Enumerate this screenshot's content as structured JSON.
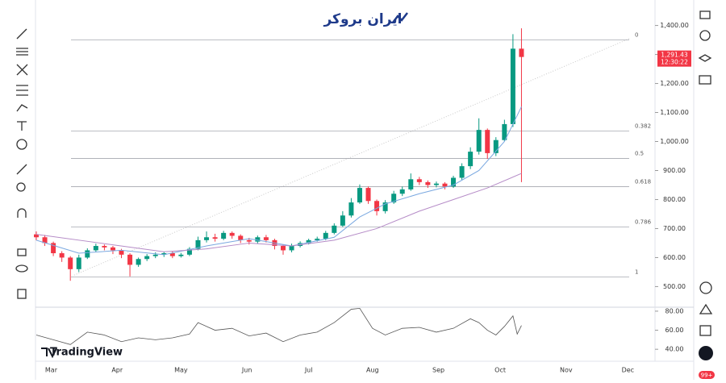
{
  "header": {
    "logo": "ایران بروکر",
    "watermark": "TradingView",
    "badge": "99+"
  },
  "chart_data": [
    {
      "type": "candlestick",
      "x": [
        0,
        4,
        8,
        12,
        16,
        20,
        24,
        28,
        32,
        36,
        40,
        44,
        48,
        52,
        56,
        60,
        64,
        68,
        72,
        76,
        80,
        84,
        88,
        92,
        96,
        100,
        104,
        108,
        112,
        116,
        120,
        124,
        128,
        132,
        136,
        140,
        144,
        148,
        152,
        156,
        160,
        164,
        168,
        172,
        176,
        180,
        184,
        188,
        192,
        196,
        200,
        204,
        208,
        212,
        216,
        220,
        224,
        228
      ],
      "open": [
        680,
        670,
        650,
        615,
        600,
        560,
        600,
        625,
        640,
        635,
        625,
        610,
        575,
        595,
        605,
        610,
        615,
        605,
        610,
        630,
        660,
        670,
        665,
        685,
        675,
        660,
        655,
        670,
        660,
        640,
        625,
        640,
        650,
        660,
        665,
        685,
        710,
        745,
        790,
        840,
        795,
        760,
        790,
        820,
        835,
        870,
        860,
        850,
        855,
        845,
        875,
        915,
        965,
        1040,
        960,
        1005,
        1060,
        1320
      ],
      "high": [
        690,
        678,
        655,
        622,
        605,
        610,
        632,
        648,
        645,
        640,
        630,
        615,
        600,
        612,
        618,
        620,
        622,
        616,
        636,
        672,
        690,
        682,
        692,
        690,
        680,
        668,
        676,
        678,
        665,
        645,
        648,
        656,
        665,
        672,
        692,
        718,
        760,
        805,
        852,
        845,
        800,
        798,
        830,
        845,
        890,
        878,
        866,
        862,
        860,
        882,
        925,
        980,
        1080,
        1045,
        1015,
        1075,
        1370,
        1390
      ],
      "low": [
        660,
        640,
        605,
        585,
        520,
        550,
        595,
        618,
        625,
        612,
        598,
        535,
        568,
        588,
        598,
        602,
        598,
        600,
        605,
        625,
        652,
        655,
        660,
        665,
        650,
        645,
        648,
        652,
        628,
        610,
        618,
        635,
        645,
        655,
        660,
        680,
        705,
        738,
        785,
        785,
        745,
        752,
        785,
        812,
        830,
        850,
        840,
        842,
        835,
        840,
        868,
        905,
        955,
        940,
        950,
        1000,
        1050,
        860
      ],
      "close": [
        670,
        650,
        615,
        600,
        560,
        600,
        625,
        640,
        635,
        625,
        610,
        575,
        595,
        605,
        610,
        615,
        605,
        610,
        630,
        660,
        670,
        665,
        685,
        675,
        660,
        655,
        670,
        660,
        640,
        625,
        640,
        650,
        660,
        665,
        685,
        710,
        745,
        790,
        840,
        795,
        760,
        790,
        820,
        835,
        870,
        860,
        850,
        855,
        845,
        875,
        915,
        965,
        1040,
        960,
        1005,
        1060,
        1320,
        1291.43
      ],
      "up_color": "#089981",
      "down_color": "#f23645",
      "last_price_label": "1,291.43",
      "countdown": "12:30:22",
      "moving_averages": [
        {
          "color": "#7aa8e0",
          "x": [
            0,
            20,
            40,
            60,
            80,
            100,
            120,
            140,
            152,
            164,
            180,
            196,
            208,
            220,
            228
          ],
          "values": [
            660,
            615,
            625,
            610,
            640,
            665,
            640,
            670,
            740,
            785,
            820,
            850,
            900,
            1000,
            1120
          ]
        },
        {
          "color": "#b58bc7",
          "x": [
            0,
            30,
            60,
            80,
            100,
            120,
            140,
            160,
            180,
            196,
            212,
            228
          ],
          "values": [
            680,
            650,
            620,
            630,
            650,
            640,
            660,
            700,
            760,
            800,
            840,
            890
          ]
        }
      ],
      "fib_levels": [
        {
          "label": "0",
          "price": 1350
        },
        {
          "label": "0.382",
          "price": 1036
        },
        {
          "label": "0.5",
          "price": 942
        },
        {
          "label": "0.618",
          "price": 844
        },
        {
          "label": "0.786",
          "price": 706
        },
        {
          "label": "1",
          "price": 533
        }
      ],
      "xlim": [
        0,
        290
      ],
      "xticks": [
        {
          "value": 7,
          "label": "Mar"
        },
        {
          "value": 38,
          "label": "Apr"
        },
        {
          "value": 68,
          "label": "May"
        },
        {
          "value": 99,
          "label": "Jun"
        },
        {
          "value": 128,
          "label": "Jul"
        },
        {
          "value": 158,
          "label": "Aug"
        },
        {
          "value": 189,
          "label": "Sep"
        },
        {
          "value": 218,
          "label": "Oct"
        },
        {
          "value": 249,
          "label": "Nov"
        },
        {
          "value": 278,
          "label": "Dec"
        }
      ],
      "ylim": [
        440,
        1460
      ],
      "yticks": [
        {
          "value": 500,
          "label": "500.00"
        },
        {
          "value": 600,
          "label": "600.00"
        },
        {
          "value": 700,
          "label": "700.00"
        },
        {
          "value": 800,
          "label": "800.00"
        },
        {
          "value": 900,
          "label": "900.00"
        },
        {
          "value": 1000,
          "label": "1,000.00"
        },
        {
          "value": 1100,
          "label": "1,100.00"
        },
        {
          "value": 1200,
          "label": "1,200.00"
        },
        {
          "value": 1300,
          "label": "1,300.00"
        },
        {
          "value": 1400,
          "label": "1,400.00"
        }
      ]
    },
    {
      "type": "line",
      "color": "#555555",
      "x": [
        0,
        8,
        16,
        24,
        32,
        40,
        48,
        56,
        64,
        72,
        76,
        84,
        92,
        100,
        108,
        116,
        124,
        132,
        140,
        148,
        152,
        158,
        164,
        172,
        180,
        188,
        196,
        204,
        208,
        212,
        216,
        220,
        224,
        226,
        228
      ],
      "values": [
        55,
        50,
        45,
        58,
        55,
        48,
        52,
        50,
        52,
        56,
        68,
        60,
        62,
        54,
        57,
        48,
        55,
        58,
        68,
        82,
        83,
        62,
        55,
        62,
        63,
        58,
        62,
        72,
        68,
        60,
        55,
        64,
        75,
        56,
        65
      ],
      "xlim": [
        0,
        290
      ],
      "ylim": [
        30,
        85
      ],
      "yticks": [
        {
          "value": 40,
          "label": "40.00"
        },
        {
          "value": 60,
          "label": "60.00"
        },
        {
          "value": 80,
          "label": "80.00"
        }
      ]
    }
  ]
}
